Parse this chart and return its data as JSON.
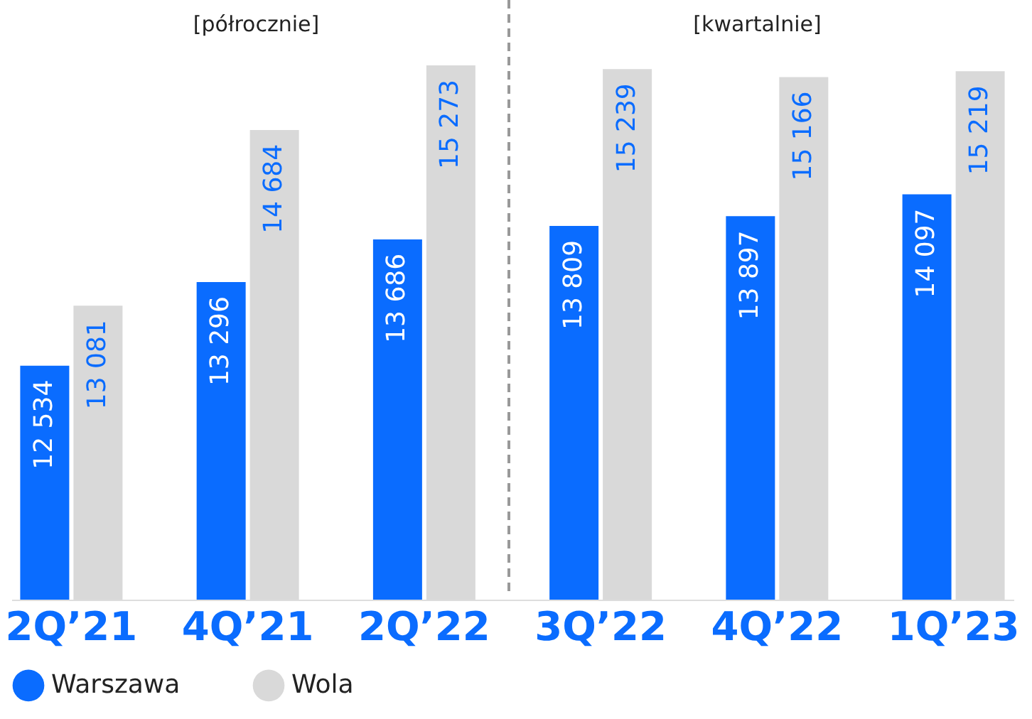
{
  "chart_data": {
    "type": "bar",
    "categories": [
      "2Q’21",
      "4Q’21",
      "2Q’22",
      "3Q’22",
      "4Q’22",
      "1Q’23"
    ],
    "series": [
      {
        "name": "Warszawa",
        "color": "#0a6cff",
        "values": [
          12534,
          13296,
          13686,
          13809,
          13897,
          14097
        ]
      },
      {
        "name": "Wola",
        "color": "#d9d9d9",
        "values": [
          13081,
          14684,
          15273,
          15239,
          15166,
          15219
        ]
      }
    ],
    "ylim": [
      10400,
      15273
    ],
    "data_labels": true,
    "legend": "bottom left",
    "grid": false,
    "annotations": [
      "[półrocznie]",
      "[kwartalnie]"
    ]
  }
}
